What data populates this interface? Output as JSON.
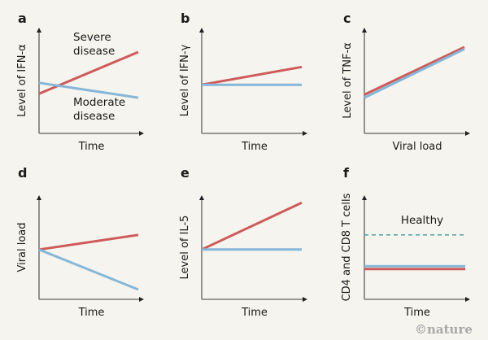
{
  "colors": {
    "severe": "#cf5a5a",
    "moderate": "#86b7d8",
    "healthy": "#3b9a96",
    "axis": "#7a7a7a",
    "background": "#f5f4ee"
  },
  "credit": "©nature",
  "chart_data": [
    {
      "id": "a",
      "type": "line",
      "panel_label": "a",
      "xlabel": "Time",
      "ylabel": "Level of IFN-α",
      "xlim": [
        0,
        1
      ],
      "ylim": [
        0,
        1
      ],
      "annotations": [
        {
          "text_lines": [
            "Severe",
            "disease"
          ],
          "near": "upper-middle"
        },
        {
          "text_lines": [
            "Moderate",
            "disease"
          ],
          "near": "lower-middle"
        }
      ],
      "series": [
        {
          "name": "Severe disease",
          "color_key": "severe",
          "x": [
            0,
            1
          ],
          "y": [
            0.4,
            0.82
          ]
        },
        {
          "name": "Moderate disease",
          "color_key": "moderate",
          "x": [
            0,
            1
          ],
          "y": [
            0.51,
            0.36
          ]
        }
      ]
    },
    {
      "id": "b",
      "type": "line",
      "panel_label": "b",
      "xlabel": "Time",
      "ylabel": "Level of IFN-γ",
      "xlim": [
        0,
        1
      ],
      "ylim": [
        0,
        1
      ],
      "series": [
        {
          "name": "Severe disease",
          "color_key": "severe",
          "x": [
            0,
            1
          ],
          "y": [
            0.49,
            0.67
          ]
        },
        {
          "name": "Moderate disease",
          "color_key": "moderate",
          "x": [
            0,
            1
          ],
          "y": [
            0.49,
            0.49
          ]
        }
      ]
    },
    {
      "id": "c",
      "type": "line",
      "panel_label": "c",
      "xlabel": "Viral load",
      "ylabel": "Level of TNF-α",
      "xlim": [
        0,
        1
      ],
      "ylim": [
        0,
        1
      ],
      "series": [
        {
          "name": "Severe disease",
          "color_key": "severe",
          "x": [
            0,
            1
          ],
          "y": [
            0.39,
            0.87
          ]
        },
        {
          "name": "Moderate disease",
          "color_key": "moderate",
          "x": [
            0,
            1
          ],
          "y": [
            0.36,
            0.85
          ]
        }
      ]
    },
    {
      "id": "d",
      "type": "line",
      "panel_label": "d",
      "xlabel": "Time",
      "ylabel": "Viral load",
      "xlim": [
        0,
        1
      ],
      "ylim": [
        0,
        1
      ],
      "series": [
        {
          "name": "Severe disease",
          "color_key": "severe",
          "x": [
            0,
            1
          ],
          "y": [
            0.51,
            0.66
          ]
        },
        {
          "name": "Moderate disease",
          "color_key": "moderate",
          "x": [
            0,
            1
          ],
          "y": [
            0.51,
            0.1
          ]
        }
      ]
    },
    {
      "id": "e",
      "type": "line",
      "panel_label": "e",
      "xlabel": "Time",
      "ylabel": "Level of IL-5",
      "xlim": [
        0,
        1
      ],
      "ylim": [
        0,
        1
      ],
      "series": [
        {
          "name": "Severe disease",
          "color_key": "severe",
          "x": [
            0,
            1
          ],
          "y": [
            0.51,
            0.99
          ]
        },
        {
          "name": "Moderate disease",
          "color_key": "moderate",
          "x": [
            0,
            1
          ],
          "y": [
            0.51,
            0.51
          ]
        }
      ]
    },
    {
      "id": "f",
      "type": "line",
      "panel_label": "f",
      "xlabel": "Time",
      "ylabel": "CD4 and CD8 T cells",
      "xlim": [
        0,
        1
      ],
      "ylim": [
        0,
        1
      ],
      "annotations": [
        {
          "text_lines": [
            "Healthy"
          ],
          "near": "above dashed line, right"
        }
      ],
      "series": [
        {
          "name": "Healthy",
          "color_key": "healthy",
          "dashed": true,
          "x": [
            0,
            1
          ],
          "y": [
            0.66,
            0.66
          ]
        },
        {
          "name": "Moderate disease",
          "color_key": "moderate",
          "x": [
            0,
            1
          ],
          "y": [
            0.34,
            0.34
          ]
        },
        {
          "name": "Severe disease",
          "color_key": "severe",
          "x": [
            0,
            1
          ],
          "y": [
            0.31,
            0.31
          ]
        }
      ]
    }
  ]
}
